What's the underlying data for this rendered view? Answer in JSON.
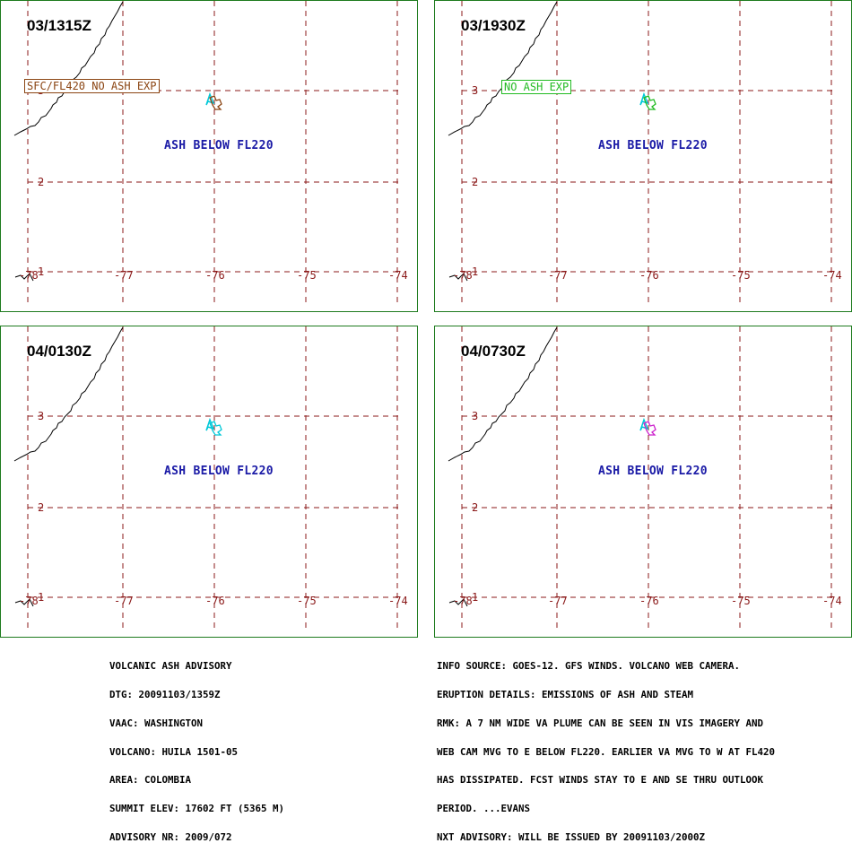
{
  "panels": [
    {
      "time": "03/1315Z",
      "ash_label": "ASH BELOW FL220",
      "tag": "SFC/FL420 NO ASH EXP",
      "tag_color": "#8b4513",
      "plume_color": "#8b4513"
    },
    {
      "time": "03/1930Z",
      "ash_label": "ASH BELOW FL220",
      "tag": "NO ASH EXP",
      "tag_color": "#22bb22",
      "plume_color": "#22bb22"
    },
    {
      "time": "04/0130Z",
      "ash_label": "ASH BELOW FL220",
      "tag": "",
      "tag_color": "#00c8d8",
      "plume_color": "#00c8d8"
    },
    {
      "time": "04/0730Z",
      "ash_label": "ASH BELOW FL220",
      "tag": "",
      "tag_color": "#cc22cc",
      "plume_color": "#cc22cc"
    }
  ],
  "axes": {
    "lon_ticks": [
      "-78",
      "-77",
      "-76",
      "-75",
      "-74"
    ],
    "lat_ticks": [
      "3",
      "2",
      "1"
    ]
  },
  "colors": {
    "border": "#1e7b1e",
    "grid": "#8b1a1a",
    "ash_text": "#1a1aa6",
    "volcano_marker": "#00c8d8"
  },
  "advisory_left": [
    "VOLCANIC ASH ADVISORY",
    "DTG: 20091103/1359Z",
    "VAAC: WASHINGTON",
    "VOLCANO: HUILA 1501-05",
    "AREA: COLOMBIA",
    "SUMMIT ELEV: 17602 FT (5365 M)",
    "ADVISORY NR: 2009/072"
  ],
  "advisory_right": [
    "INFO SOURCE: GOES-12. GFS WINDS. VOLCANO WEB CAMERA.",
    "ERUPTION DETAILS: EMISSIONS OF ASH AND STEAM",
    "RMK: A 7 NM WIDE VA PLUME CAN BE SEEN IN VIS IMAGERY AND",
    "WEB CAM MVG TO E BELOW FL220. EARLIER VA MVG TO W AT FL420",
    "HAS DISSIPATED. FCST WINDS STAY TO E AND SE THRU OUTLOOK",
    "PERIOD. ...EVANS",
    "NXT ADVISORY: WILL BE ISSUED BY 20091103/2000Z"
  ]
}
